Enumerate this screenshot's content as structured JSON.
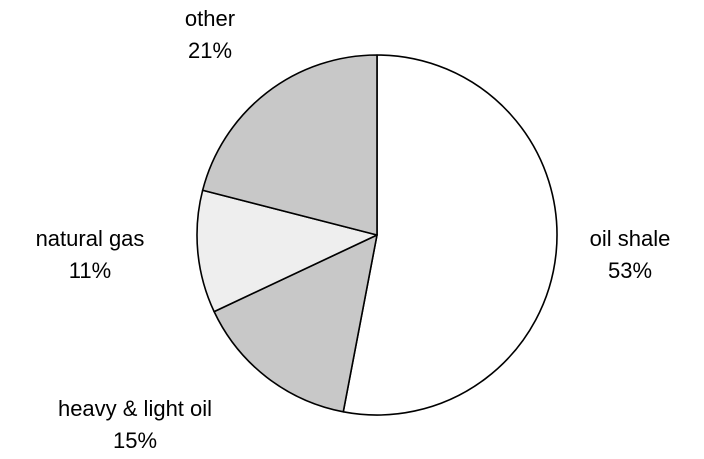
{
  "chart_data": {
    "type": "pie",
    "categories": [
      "oil shale",
      "heavy & light oil",
      "natural gas",
      "other"
    ],
    "values": [
      53,
      15,
      11,
      21
    ],
    "value_labels": [
      "53%",
      "15%",
      "11%",
      "21%"
    ],
    "colors": [
      "#ffffff",
      "#c8c8c8",
      "#eeeeee",
      "#c8c8c8"
    ]
  }
}
